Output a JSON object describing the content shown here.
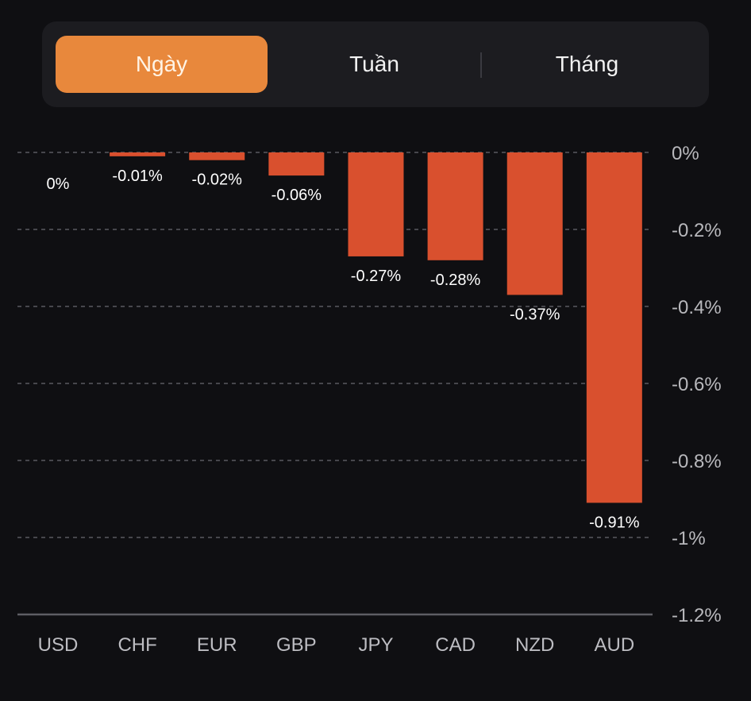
{
  "tabs": [
    {
      "label": "Ngày",
      "active": true
    },
    {
      "label": "Tuần",
      "active": false
    },
    {
      "label": "Tháng",
      "active": false
    }
  ],
  "colors": {
    "background": "#0f0f12",
    "tab_bar": "#1c1c20",
    "active_tab": "#e8883c",
    "bar": "#d9502e",
    "gridline": "#5a5a60",
    "axis_text": "#b8b8bc",
    "value_text": "#ffffff"
  },
  "chart_data": {
    "type": "bar",
    "title": "",
    "xlabel": "",
    "ylabel": "",
    "categories": [
      "USD",
      "CHF",
      "EUR",
      "GBP",
      "JPY",
      "CAD",
      "NZD",
      "AUD"
    ],
    "values": [
      0,
      -0.01,
      -0.02,
      -0.06,
      -0.27,
      -0.28,
      -0.37,
      -0.91
    ],
    "value_labels": [
      "0%",
      "-0.01%",
      "-0.02%",
      "-0.06%",
      "-0.27%",
      "-0.28%",
      "-0.37%",
      "-0.91%"
    ],
    "unit": "%",
    "ylim": [
      -1.2,
      0
    ],
    "yticks": [
      0,
      -0.2,
      -0.4,
      -0.6,
      -0.8,
      -1,
      -1.2
    ],
    "ytick_labels": [
      "0%",
      "-0.2%",
      "-0.4%",
      "-0.6%",
      "-0.8%",
      "-1%",
      "-1.2%"
    ],
    "y_axis_position": "right",
    "grid": true,
    "grid_style": "dashed",
    "legend": "none"
  }
}
